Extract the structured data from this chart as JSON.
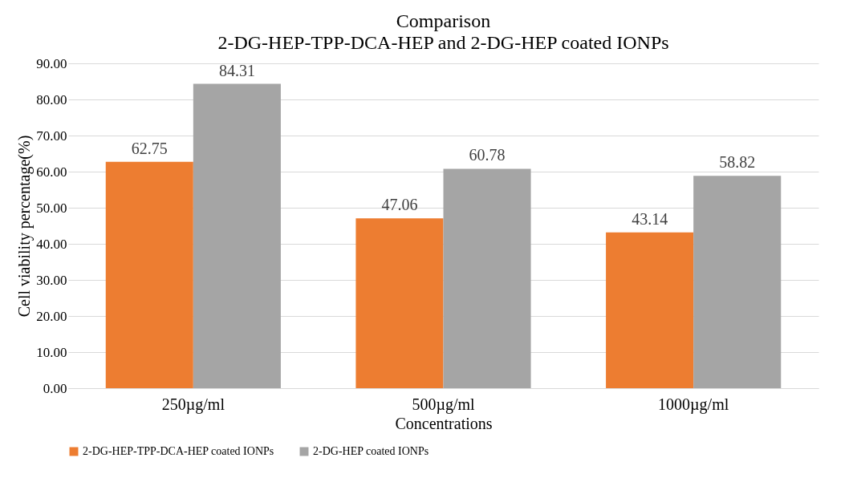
{
  "chart_data": {
    "type": "bar",
    "title": "Comparison",
    "subtitle": "2-DG-HEP-TPP-DCA-HEP and 2-DG-HEP coated IONPs",
    "xlabel": "Concentrations",
    "ylabel": "Cell viability percentage(%)",
    "categories": [
      "250µg/ml",
      "500µg/ml",
      "1000µg/ml"
    ],
    "series": [
      {
        "name": "2-DG-HEP-TPP-DCA-HEP coated IONPs",
        "color": "#ed7d31",
        "values": [
          62.75,
          47.06,
          43.14
        ]
      },
      {
        "name": "2-DG-HEP coated IONPs",
        "color": "#a5a5a5",
        "values": [
          84.31,
          60.78,
          58.82
        ]
      }
    ],
    "ylim": [
      0,
      90
    ],
    "yticks": [
      {
        "value": 0,
        "label": "0.00"
      },
      {
        "value": 10,
        "label": "10.00"
      },
      {
        "value": 20,
        "label": "20.00"
      },
      {
        "value": 30,
        "label": "30.00"
      },
      {
        "value": 40,
        "label": "40.00"
      },
      {
        "value": 50,
        "label": "50.00"
      },
      {
        "value": 60,
        "label": "60.00"
      },
      {
        "value": 70,
        "label": "70.00"
      },
      {
        "value": 80,
        "label": "80.00"
      },
      {
        "value": 90,
        "label": "90.00"
      }
    ],
    "data_labels": true,
    "grid": "y",
    "legend": "bottom"
  }
}
